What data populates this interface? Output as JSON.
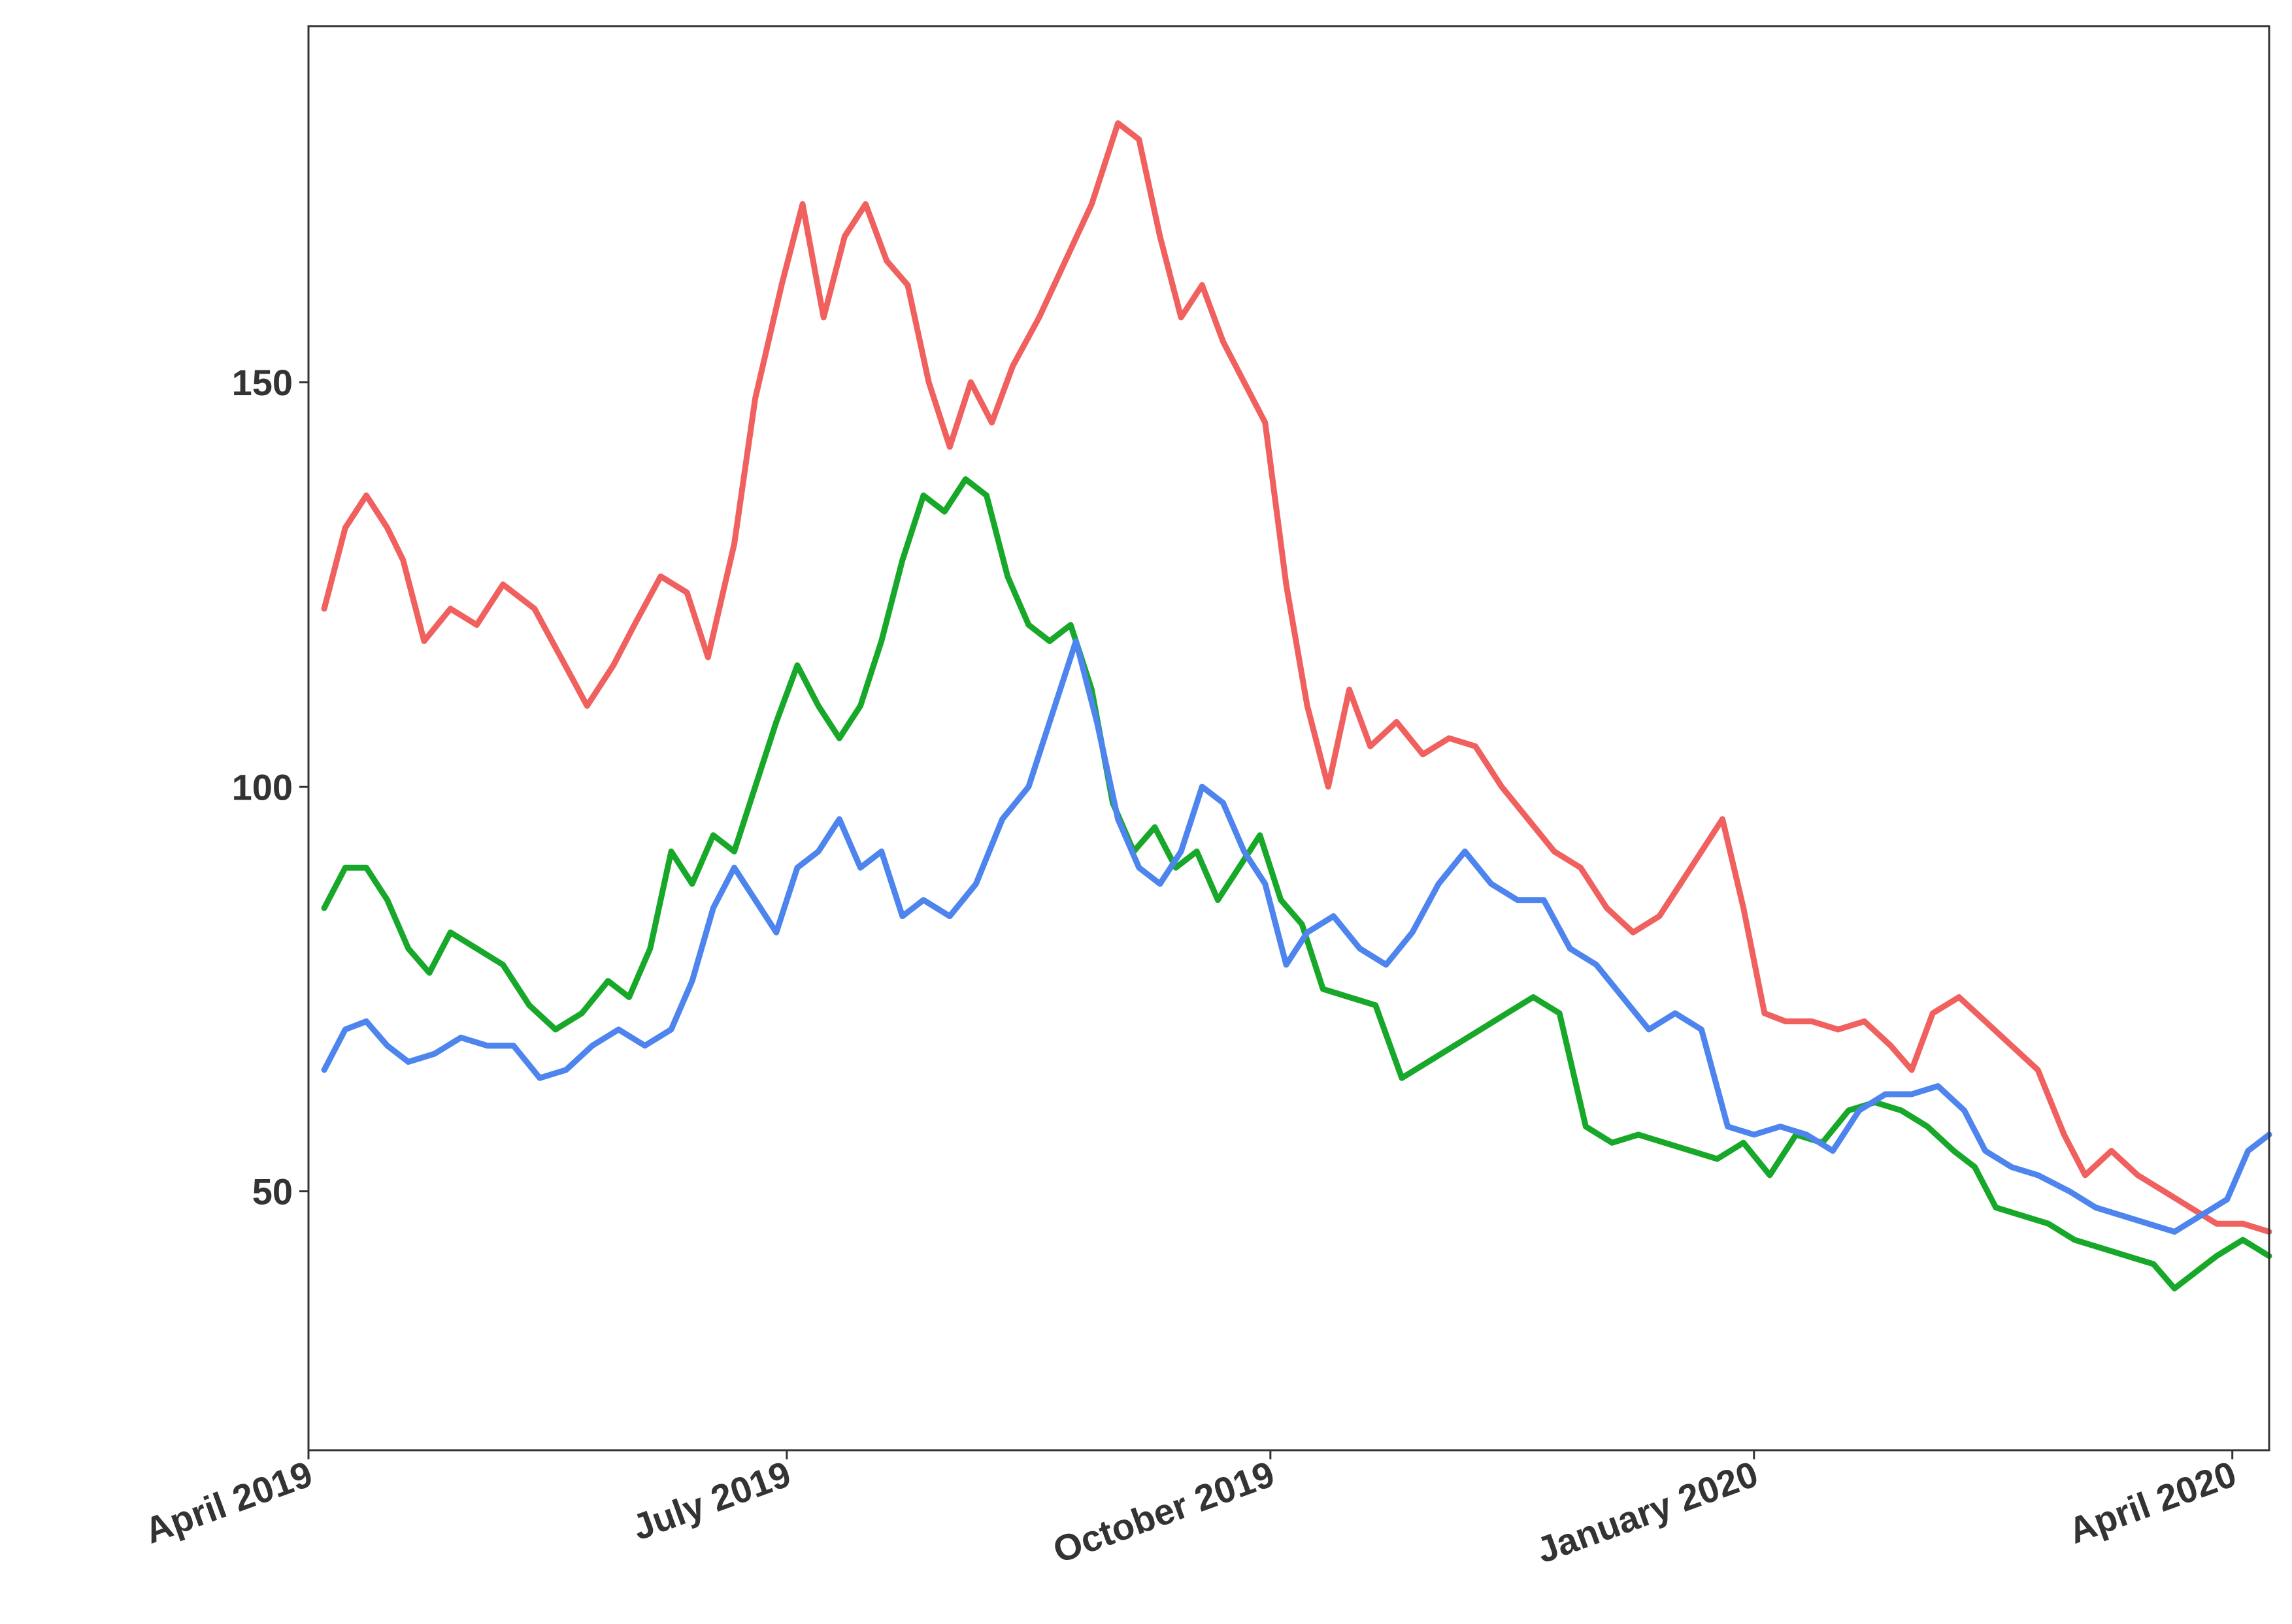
{
  "chart_data": {
    "type": "line",
    "title": "",
    "xlabel": "",
    "ylabel": "",
    "xlim": [
      "2019-04-01",
      "2020-04-08"
    ],
    "ylim": [
      18,
      194
    ],
    "grid": false,
    "legend": "none",
    "y_ticks": [
      {
        "value": 50,
        "label": "50"
      },
      {
        "value": 100,
        "label": "100"
      },
      {
        "value": 150,
        "label": "150"
      }
    ],
    "x_ticks": [
      {
        "value": "2019-04-01",
        "label": "April 2019"
      },
      {
        "value": "2019-07-01",
        "label": "July 2019"
      },
      {
        "value": "2019-10-01",
        "label": "October 2019"
      },
      {
        "value": "2020-01-01",
        "label": "January 2020"
      },
      {
        "value": "2020-04-01",
        "label": "April 2020"
      }
    ],
    "series": [
      {
        "color": "#F0605E",
        "points": [
          [
            "2019-04-04",
            122
          ],
          [
            "2019-04-08",
            132
          ],
          [
            "2019-04-12",
            136
          ],
          [
            "2019-04-16",
            132
          ],
          [
            "2019-04-19",
            128
          ],
          [
            "2019-04-23",
            118
          ],
          [
            "2019-04-28",
            122
          ],
          [
            "2019-05-03",
            120
          ],
          [
            "2019-05-08",
            125
          ],
          [
            "2019-05-14",
            122
          ],
          [
            "2019-05-19",
            116
          ],
          [
            "2019-05-24",
            110
          ],
          [
            "2019-05-29",
            115
          ],
          [
            "2019-06-02",
            120
          ],
          [
            "2019-06-07",
            126
          ],
          [
            "2019-06-12",
            124
          ],
          [
            "2019-06-16",
            116
          ],
          [
            "2019-06-21",
            130
          ],
          [
            "2019-06-25",
            148
          ],
          [
            "2019-06-30",
            162
          ],
          [
            "2019-07-04",
            172
          ],
          [
            "2019-07-08",
            158
          ],
          [
            "2019-07-12",
            168
          ],
          [
            "2019-07-16",
            172
          ],
          [
            "2019-07-20",
            165
          ],
          [
            "2019-07-24",
            162
          ],
          [
            "2019-07-28",
            150
          ],
          [
            "2019-08-01",
            142
          ],
          [
            "2019-08-05",
            150
          ],
          [
            "2019-08-09",
            145
          ],
          [
            "2019-08-13",
            152
          ],
          [
            "2019-08-18",
            158
          ],
          [
            "2019-08-23",
            165
          ],
          [
            "2019-08-28",
            172
          ],
          [
            "2019-09-02",
            182
          ],
          [
            "2019-09-06",
            180
          ],
          [
            "2019-09-10",
            168
          ],
          [
            "2019-09-14",
            158
          ],
          [
            "2019-09-18",
            162
          ],
          [
            "2019-09-22",
            155
          ],
          [
            "2019-09-26",
            150
          ],
          [
            "2019-09-30",
            145
          ],
          [
            "2019-10-04",
            125
          ],
          [
            "2019-10-08",
            110
          ],
          [
            "2019-10-12",
            100
          ],
          [
            "2019-10-16",
            112
          ],
          [
            "2019-10-20",
            105
          ],
          [
            "2019-10-25",
            108
          ],
          [
            "2019-10-30",
            104
          ],
          [
            "2019-11-04",
            106
          ],
          [
            "2019-11-09",
            105
          ],
          [
            "2019-11-14",
            100
          ],
          [
            "2019-11-19",
            96
          ],
          [
            "2019-11-24",
            92
          ],
          [
            "2019-11-29",
            90
          ],
          [
            "2019-12-04",
            85
          ],
          [
            "2019-12-09",
            82
          ],
          [
            "2019-12-14",
            84
          ],
          [
            "2019-12-18",
            88
          ],
          [
            "2019-12-22",
            92
          ],
          [
            "2019-12-26",
            96
          ],
          [
            "2019-12-30",
            85
          ],
          [
            "2020-01-03",
            72
          ],
          [
            "2020-01-07",
            71
          ],
          [
            "2020-01-12",
            71
          ],
          [
            "2020-01-17",
            70
          ],
          [
            "2020-01-22",
            71
          ],
          [
            "2020-01-27",
            68
          ],
          [
            "2020-01-31",
            65
          ],
          [
            "2020-02-04",
            72
          ],
          [
            "2020-02-09",
            74
          ],
          [
            "2020-02-14",
            71
          ],
          [
            "2020-02-19",
            68
          ],
          [
            "2020-02-24",
            65
          ],
          [
            "2020-02-29",
            57
          ],
          [
            "2020-03-04",
            52
          ],
          [
            "2020-03-09",
            55
          ],
          [
            "2020-03-14",
            52
          ],
          [
            "2020-03-19",
            50
          ],
          [
            "2020-03-24",
            48
          ],
          [
            "2020-03-29",
            46
          ],
          [
            "2020-04-03",
            46
          ],
          [
            "2020-04-08",
            45
          ]
        ]
      },
      {
        "color": "#17A82A",
        "points": [
          [
            "2019-04-04",
            85
          ],
          [
            "2019-04-08",
            90
          ],
          [
            "2019-04-12",
            90
          ],
          [
            "2019-04-16",
            86
          ],
          [
            "2019-04-20",
            80
          ],
          [
            "2019-04-24",
            77
          ],
          [
            "2019-04-28",
            82
          ],
          [
            "2019-05-03",
            80
          ],
          [
            "2019-05-08",
            78
          ],
          [
            "2019-05-13",
            73
          ],
          [
            "2019-05-18",
            70
          ],
          [
            "2019-05-23",
            72
          ],
          [
            "2019-05-28",
            76
          ],
          [
            "2019-06-01",
            74
          ],
          [
            "2019-06-05",
            80
          ],
          [
            "2019-06-09",
            92
          ],
          [
            "2019-06-13",
            88
          ],
          [
            "2019-06-17",
            94
          ],
          [
            "2019-06-21",
            92
          ],
          [
            "2019-06-25",
            100
          ],
          [
            "2019-06-29",
            108
          ],
          [
            "2019-07-03",
            115
          ],
          [
            "2019-07-07",
            110
          ],
          [
            "2019-07-11",
            106
          ],
          [
            "2019-07-15",
            110
          ],
          [
            "2019-07-19",
            118
          ],
          [
            "2019-07-23",
            128
          ],
          [
            "2019-07-27",
            136
          ],
          [
            "2019-07-31",
            134
          ],
          [
            "2019-08-04",
            138
          ],
          [
            "2019-08-08",
            136
          ],
          [
            "2019-08-12",
            126
          ],
          [
            "2019-08-16",
            120
          ],
          [
            "2019-08-20",
            118
          ],
          [
            "2019-08-24",
            120
          ],
          [
            "2019-08-28",
            112
          ],
          [
            "2019-09-01",
            98
          ],
          [
            "2019-09-05",
            92
          ],
          [
            "2019-09-09",
            95
          ],
          [
            "2019-09-13",
            90
          ],
          [
            "2019-09-17",
            92
          ],
          [
            "2019-09-21",
            86
          ],
          [
            "2019-09-25",
            90
          ],
          [
            "2019-09-29",
            94
          ],
          [
            "2019-10-03",
            86
          ],
          [
            "2019-10-07",
            83
          ],
          [
            "2019-10-11",
            75
          ],
          [
            "2019-10-16",
            74
          ],
          [
            "2019-10-21",
            73
          ],
          [
            "2019-10-26",
            64
          ],
          [
            "2019-10-31",
            66
          ],
          [
            "2019-11-05",
            68
          ],
          [
            "2019-11-10",
            70
          ],
          [
            "2019-11-15",
            72
          ],
          [
            "2019-11-20",
            74
          ],
          [
            "2019-11-25",
            72
          ],
          [
            "2019-11-30",
            58
          ],
          [
            "2019-12-05",
            56
          ],
          [
            "2019-12-10",
            57
          ],
          [
            "2019-12-15",
            56
          ],
          [
            "2019-12-20",
            55
          ],
          [
            "2019-12-25",
            54
          ],
          [
            "2019-12-30",
            56
          ],
          [
            "2020-01-04",
            52
          ],
          [
            "2020-01-09",
            57
          ],
          [
            "2020-01-14",
            56
          ],
          [
            "2020-01-19",
            60
          ],
          [
            "2020-01-24",
            61
          ],
          [
            "2020-01-29",
            60
          ],
          [
            "2020-02-03",
            58
          ],
          [
            "2020-02-08",
            55
          ],
          [
            "2020-02-12",
            53
          ],
          [
            "2020-02-16",
            48
          ],
          [
            "2020-02-21",
            47
          ],
          [
            "2020-02-26",
            46
          ],
          [
            "2020-03-02",
            44
          ],
          [
            "2020-03-07",
            43
          ],
          [
            "2020-03-12",
            42
          ],
          [
            "2020-03-17",
            41
          ],
          [
            "2020-03-21",
            38
          ],
          [
            "2020-03-25",
            40
          ],
          [
            "2020-03-29",
            42
          ],
          [
            "2020-04-03",
            44
          ],
          [
            "2020-04-08",
            42
          ]
        ]
      },
      {
        "color": "#4E84EE",
        "points": [
          [
            "2019-04-04",
            65
          ],
          [
            "2019-04-08",
            70
          ],
          [
            "2019-04-12",
            71
          ],
          [
            "2019-04-16",
            68
          ],
          [
            "2019-04-20",
            66
          ],
          [
            "2019-04-25",
            67
          ],
          [
            "2019-04-30",
            69
          ],
          [
            "2019-05-05",
            68
          ],
          [
            "2019-05-10",
            68
          ],
          [
            "2019-05-15",
            64
          ],
          [
            "2019-05-20",
            65
          ],
          [
            "2019-05-25",
            68
          ],
          [
            "2019-05-30",
            70
          ],
          [
            "2019-06-04",
            68
          ],
          [
            "2019-06-09",
            70
          ],
          [
            "2019-06-13",
            76
          ],
          [
            "2019-06-17",
            85
          ],
          [
            "2019-06-21",
            90
          ],
          [
            "2019-06-25",
            86
          ],
          [
            "2019-06-29",
            82
          ],
          [
            "2019-07-03",
            90
          ],
          [
            "2019-07-07",
            92
          ],
          [
            "2019-07-11",
            96
          ],
          [
            "2019-07-15",
            90
          ],
          [
            "2019-07-19",
            92
          ],
          [
            "2019-07-23",
            84
          ],
          [
            "2019-07-27",
            86
          ],
          [
            "2019-08-01",
            84
          ],
          [
            "2019-08-06",
            88
          ],
          [
            "2019-08-11",
            96
          ],
          [
            "2019-08-16",
            100
          ],
          [
            "2019-08-21",
            110
          ],
          [
            "2019-08-25",
            118
          ],
          [
            "2019-08-29",
            108
          ],
          [
            "2019-09-02",
            96
          ],
          [
            "2019-09-06",
            90
          ],
          [
            "2019-09-10",
            88
          ],
          [
            "2019-09-14",
            92
          ],
          [
            "2019-09-18",
            100
          ],
          [
            "2019-09-22",
            98
          ],
          [
            "2019-09-26",
            92
          ],
          [
            "2019-09-30",
            88
          ],
          [
            "2019-10-04",
            78
          ],
          [
            "2019-10-08",
            82
          ],
          [
            "2019-10-13",
            84
          ],
          [
            "2019-10-18",
            80
          ],
          [
            "2019-10-23",
            78
          ],
          [
            "2019-10-28",
            82
          ],
          [
            "2019-11-02",
            88
          ],
          [
            "2019-11-07",
            92
          ],
          [
            "2019-11-12",
            88
          ],
          [
            "2019-11-17",
            86
          ],
          [
            "2019-11-22",
            86
          ],
          [
            "2019-11-27",
            80
          ],
          [
            "2019-12-02",
            78
          ],
          [
            "2019-12-07",
            74
          ],
          [
            "2019-12-12",
            70
          ],
          [
            "2019-12-17",
            72
          ],
          [
            "2019-12-22",
            70
          ],
          [
            "2019-12-27",
            58
          ],
          [
            "2020-01-01",
            57
          ],
          [
            "2020-01-06",
            58
          ],
          [
            "2020-01-11",
            57
          ],
          [
            "2020-01-16",
            55
          ],
          [
            "2020-01-21",
            60
          ],
          [
            "2020-01-26",
            62
          ],
          [
            "2020-01-31",
            62
          ],
          [
            "2020-02-05",
            63
          ],
          [
            "2020-02-10",
            60
          ],
          [
            "2020-02-14",
            55
          ],
          [
            "2020-02-19",
            53
          ],
          [
            "2020-02-24",
            52
          ],
          [
            "2020-03-01",
            50
          ],
          [
            "2020-03-06",
            48
          ],
          [
            "2020-03-11",
            47
          ],
          [
            "2020-03-16",
            46
          ],
          [
            "2020-03-21",
            45
          ],
          [
            "2020-03-26",
            47
          ],
          [
            "2020-03-31",
            49
          ],
          [
            "2020-04-04",
            55
          ],
          [
            "2020-04-08",
            57
          ]
        ]
      }
    ]
  }
}
